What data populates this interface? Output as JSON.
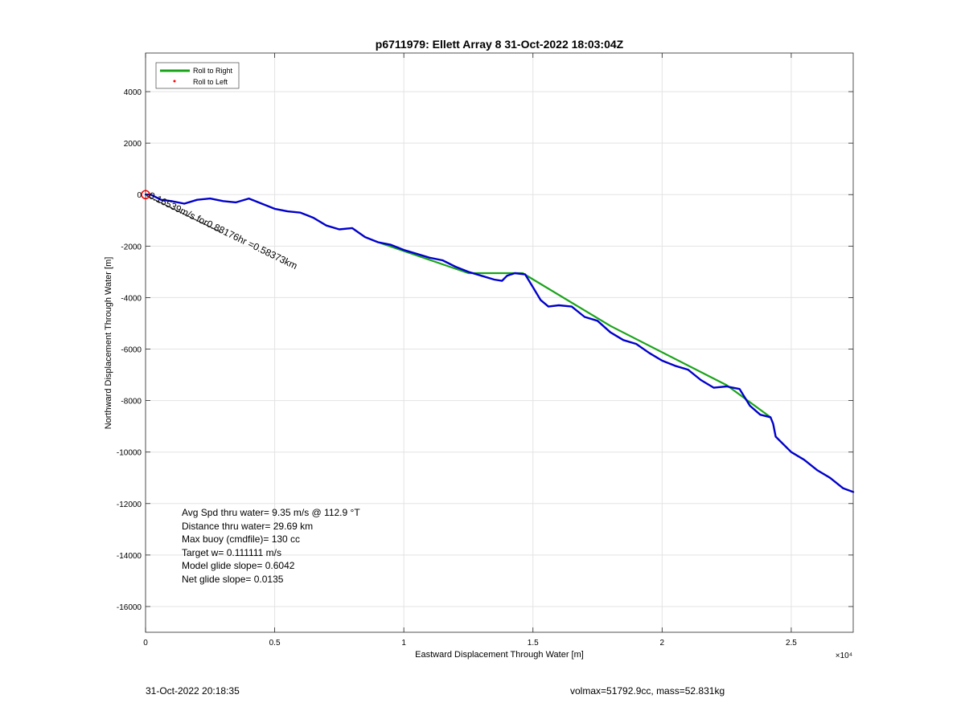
{
  "footer": {
    "left_timestamp": "31-Oct-2022 20:18:35",
    "right_info": "volmax=51792.9cc, mass=52.831kg"
  },
  "chart_data": {
    "type": "line",
    "title": "p6711979: Ellett Array 8 31-Oct-2022 18:03:04Z",
    "xlabel": "Eastward Displacement Through Water [m]",
    "ylabel": "Northward Displacement Through Water [m]",
    "x_exponent_label": "×10⁴",
    "xlim": [
      0,
      27400
    ],
    "ylim": [
      -17000,
      5500
    ],
    "x_ticks": [
      0,
      5000,
      10000,
      15000,
      20000,
      25000
    ],
    "x_tick_labels": [
      "0",
      "0.5",
      "1",
      "1.5",
      "2",
      "2.5"
    ],
    "y_ticks": [
      -16000,
      -14000,
      -12000,
      -10000,
      -8000,
      -6000,
      -4000,
      -2000,
      0,
      2000,
      4000
    ],
    "y_tick_labels": [
      "-16000",
      "-14000",
      "-12000",
      "-10000",
      "-8000",
      "-6000",
      "-4000",
      "-2000",
      "0",
      "2000",
      "4000"
    ],
    "grid": true,
    "legend_position": "top-left",
    "legend": [
      {
        "label": "Roll to Right",
        "style": "line",
        "color": "#1aa31a"
      },
      {
        "label": "Roll to Left",
        "style": "dot",
        "color": "#ff0000"
      }
    ],
    "series": [
      {
        "name": "Roll to Right",
        "color": "#1aa31a",
        "x": [
          9000,
          12500,
          14600,
          18000,
          22500,
          24200
        ],
        "y": [
          -1850,
          -3050,
          -3050,
          -5100,
          -7400,
          -8650
        ]
      },
      {
        "color": "#0000cc",
        "x": [
          0,
          200,
          600,
          1000,
          1500,
          2000,
          2500,
          3000,
          3500,
          4000,
          4500,
          5000,
          5500,
          6000,
          6500,
          7000,
          7500,
          8000,
          8500,
          9000,
          9500,
          10000,
          10500,
          11000,
          11500,
          12000,
          12500,
          13000,
          13500,
          13800,
          14000,
          14300,
          14700,
          15000,
          15300,
          15600,
          16000,
          16500,
          17000,
          17500,
          18000,
          18500,
          19000,
          19500,
          20000,
          20500,
          21000,
          21500,
          22000,
          22500,
          23000,
          23400,
          23800,
          24200,
          24300,
          24400,
          25000,
          25500,
          26000,
          26500,
          27000,
          27400
        ],
        "y": [
          0,
          0,
          -200,
          -250,
          -350,
          -200,
          -150,
          -250,
          -300,
          -150,
          -350,
          -550,
          -650,
          -700,
          -900,
          -1200,
          -1350,
          -1300,
          -1650,
          -1850,
          -1950,
          -2150,
          -2300,
          -2450,
          -2550,
          -2800,
          -3000,
          -3150,
          -3300,
          -3350,
          -3150,
          -3050,
          -3100,
          -3600,
          -4100,
          -4350,
          -4300,
          -4350,
          -4750,
          -4900,
          -5350,
          -5650,
          -5800,
          -6150,
          -6450,
          -6650,
          -6800,
          -7200,
          -7500,
          -7450,
          -7550,
          -8200,
          -8550,
          -8650,
          -8900,
          -9400,
          -10000,
          -10300,
          -10700,
          -11000,
          -11400,
          -11550
        ]
      },
      {
        "color": "#1a1a1a",
        "x": [
          50,
          2900
        ],
        "y": [
          -50,
          -1450
        ]
      }
    ],
    "start_marker": {
      "x": 0,
      "y": 0,
      "color": "#ff0000"
    },
    "rotated_annotation": "0.16539m/s for0.88176hr =0.58373km",
    "stats_box": [
      "Avg Spd thru water=  9.35 m/s @ 112.9 °T",
      "Distance thru water= 29.69 km",
      "Max buoy (cmdfile)= 130 cc",
      "Target w= 0.111111 m/s",
      "Model glide slope= 0.6042",
      "Net glide slope= 0.0135"
    ]
  }
}
